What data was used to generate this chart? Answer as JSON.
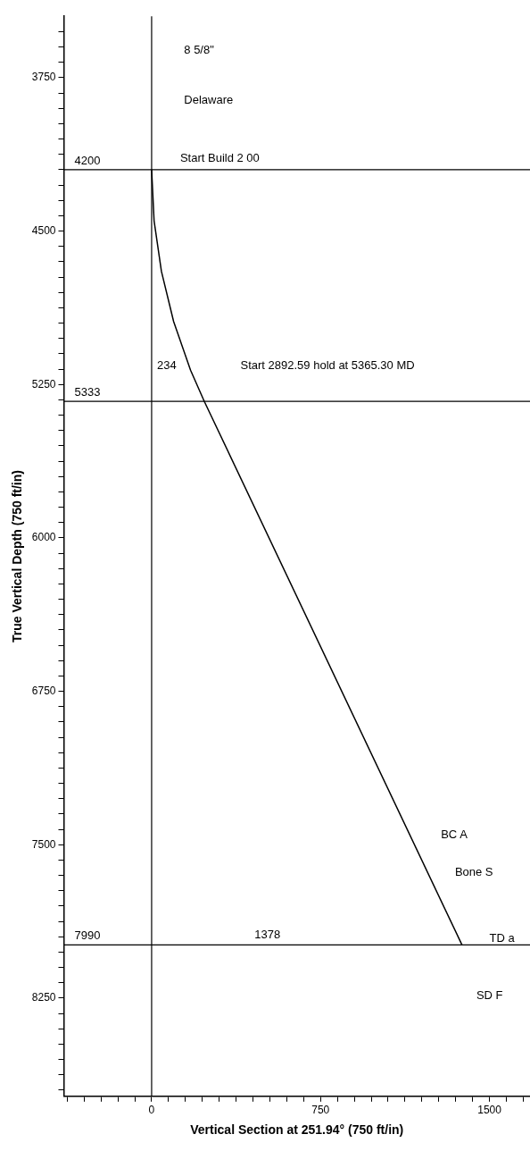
{
  "chart_data": {
    "type": "line",
    "xlabel": "Vertical Section at 251.94° (750 ft/in)",
    "ylabel": "True Vertical Depth (750 ft/in)",
    "series": [
      {
        "color": "#000000",
        "x": [
          0,
          10.9,
          43.5,
          97.6,
          172.8,
          234,
          1378
        ],
        "values": [
          4200,
          4450,
          4697,
          4942,
          5180,
          5333,
          7990
        ]
      }
    ],
    "xlim": [
      -390,
      1680
    ],
    "ylim": [
      8730,
      3450
    ],
    "xticks": [
      {
        "value": -375,
        "label": null
      },
      {
        "value": -300,
        "label": null
      },
      {
        "value": -225,
        "label": null
      },
      {
        "value": -150,
        "label": null
      },
      {
        "value": -75,
        "label": null
      },
      0,
      {
        "value": 75,
        "label": null
      },
      {
        "value": 150,
        "label": null
      },
      {
        "value": 225,
        "label": null
      },
      {
        "value": 300,
        "label": null
      },
      {
        "value": 375,
        "label": null
      },
      {
        "value": 450,
        "label": null
      },
      {
        "value": 525,
        "label": null
      },
      {
        "value": 600,
        "label": null
      },
      {
        "value": 675,
        "label": null
      },
      750,
      {
        "value": 825,
        "label": null
      },
      {
        "value": 900,
        "label": null
      },
      {
        "value": 975,
        "label": null
      },
      {
        "value": 1050,
        "label": null
      },
      {
        "value": 1125,
        "label": null
      },
      {
        "value": 1200,
        "label": null
      },
      {
        "value": 1275,
        "label": null
      },
      {
        "value": 1350,
        "label": null
      },
      {
        "value": 1425,
        "label": null
      },
      1500,
      {
        "value": 1575,
        "label": null
      },
      {
        "value": 1650,
        "label": null
      }
    ],
    "yticks": [
      {
        "value": 3525,
        "label": null
      },
      {
        "value": 3600,
        "label": null
      },
      {
        "value": 3675,
        "label": null
      },
      3750,
      {
        "value": 3825,
        "label": null
      },
      {
        "value": 3900,
        "label": null
      },
      {
        "value": 3975,
        "label": null
      },
      {
        "value": 4050,
        "label": null
      },
      {
        "value": 4125,
        "label": null
      },
      {
        "value": 4200,
        "label": null
      },
      {
        "value": 4275,
        "label": null
      },
      {
        "value": 4350,
        "label": null
      },
      {
        "value": 4425,
        "label": null
      },
      4500,
      {
        "value": 4575,
        "label": null
      },
      {
        "value": 4650,
        "label": null
      },
      {
        "value": 4725,
        "label": null
      },
      {
        "value": 4800,
        "label": null
      },
      {
        "value": 4875,
        "label": null
      },
      {
        "value": 4950,
        "label": null
      },
      {
        "value": 5025,
        "label": null
      },
      {
        "value": 5100,
        "label": null
      },
      {
        "value": 5175,
        "label": null
      },
      5250,
      {
        "value": 5325,
        "label": null
      },
      {
        "value": 5400,
        "label": null
      },
      {
        "value": 5475,
        "label": null
      },
      {
        "value": 5550,
        "label": null
      },
      {
        "value": 5625,
        "label": null
      },
      {
        "value": 5700,
        "label": null
      },
      {
        "value": 5775,
        "label": null
      },
      {
        "value": 5850,
        "label": null
      },
      {
        "value": 5925,
        "label": null
      },
      6000,
      {
        "value": 6075,
        "label": null
      },
      {
        "value": 6150,
        "label": null
      },
      {
        "value": 6225,
        "label": null
      },
      {
        "value": 6300,
        "label": null
      },
      {
        "value": 6375,
        "label": null
      },
      {
        "value": 6450,
        "label": null
      },
      {
        "value": 6525,
        "label": null
      },
      {
        "value": 6600,
        "label": null
      },
      {
        "value": 6675,
        "label": null
      },
      6750,
      {
        "value": 6825,
        "label": null
      },
      {
        "value": 6900,
        "label": null
      },
      {
        "value": 6975,
        "label": null
      },
      {
        "value": 7050,
        "label": null
      },
      {
        "value": 7125,
        "label": null
      },
      {
        "value": 7200,
        "label": null
      },
      {
        "value": 7275,
        "label": null
      },
      {
        "value": 7350,
        "label": null
      },
      {
        "value": 7425,
        "label": null
      },
      7500,
      {
        "value": 7575,
        "label": null
      },
      {
        "value": 7650,
        "label": null
      },
      {
        "value": 7725,
        "label": null
      },
      {
        "value": 7800,
        "label": null
      },
      {
        "value": 7875,
        "label": null
      },
      {
        "value": 7950,
        "label": null
      },
      {
        "value": 8025,
        "label": null
      },
      {
        "value": 8100,
        "label": null
      },
      {
        "value": 8175,
        "label": null
      },
      8250,
      {
        "value": 8325,
        "label": null
      },
      {
        "value": 8400,
        "label": null
      },
      {
        "value": 8475,
        "label": null
      },
      {
        "value": 8550,
        "label": null
      },
      {
        "value": 8625,
        "label": null
      },
      {
        "value": 8700,
        "label": null
      }
    ],
    "ref_lines": [
      {
        "axis": "x",
        "value": 0
      },
      {
        "axis": "y",
        "value": 4200,
        "label": "4200"
      },
      {
        "axis": "y",
        "value": 5333,
        "label": "5333"
      },
      {
        "axis": "y",
        "value": 7990,
        "label": "7990"
      }
    ],
    "annotations": [
      "8 5/8\"",
      "Delaware",
      {
        "text": "Start Build 2 00",
        "x": 0,
        "y": 4200
      },
      "234",
      "Start 2892.59 hold at 5365.30 MD",
      "1378",
      "BC A",
      "Bone S",
      "TD a",
      "SD F"
    ],
    "grid": false,
    "legend": false,
    "marker": "none",
    "line_style": "solid"
  }
}
